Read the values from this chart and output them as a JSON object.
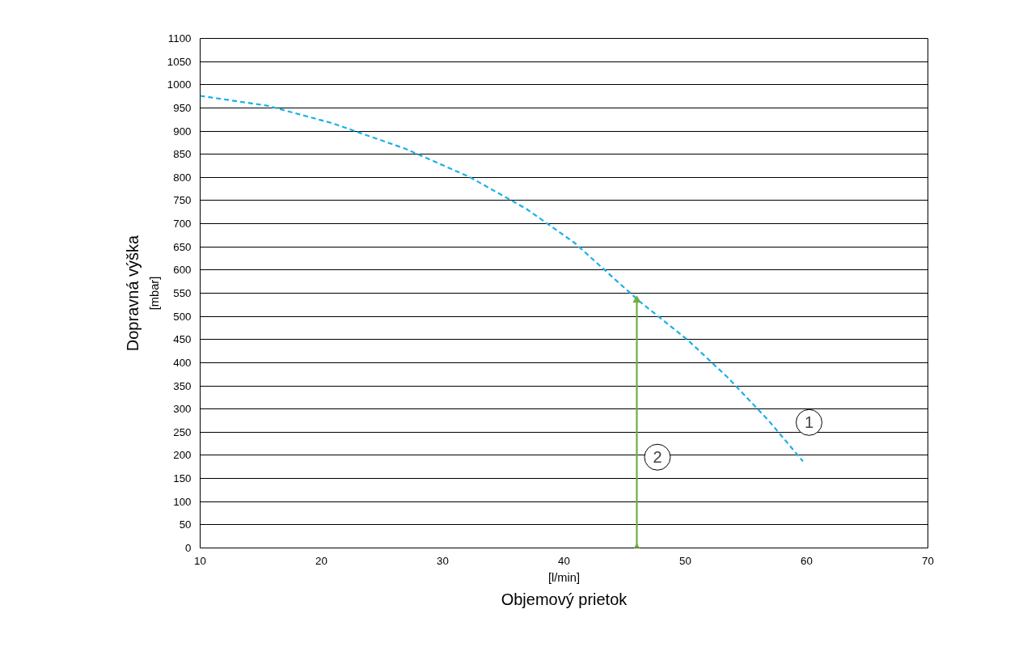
{
  "chart_data": {
    "type": "line",
    "xlabel": "[l/min]\nObjemový prietok",
    "ylabel": "[mbar]\nDopravná výška",
    "xlim": [
      10,
      70
    ],
    "ylim": [
      0,
      1100
    ],
    "xticks": [
      10,
      20,
      30,
      40,
      50,
      60,
      70
    ],
    "yticks": [
      0,
      50,
      100,
      150,
      200,
      250,
      300,
      350,
      400,
      450,
      500,
      550,
      600,
      650,
      700,
      750,
      800,
      850,
      900,
      950,
      1000,
      1050,
      1100
    ],
    "grid": "y",
    "series": [
      {
        "color": "#1ab0e8",
        "line_style": "dashed",
        "marker": "none",
        "x": [
          10,
          15.5,
          20.9,
          26.9,
          32.2,
          36.9,
          40.9,
          44.2,
          46.2,
          50.2,
          53.5,
          56.9,
          59.7
        ],
        "values": [
          976,
          955,
          917,
          862,
          801,
          732,
          658,
          580,
          533,
          449,
          368,
          274,
          187
        ]
      },
      {
        "color": "#70ad47",
        "line_style": "solid",
        "marker": "triangle",
        "x": [
          46,
          46
        ],
        "values": [
          0,
          535
        ]
      }
    ],
    "annotations": [
      {
        "text": "1",
        "x": 60.2,
        "y": 271
      },
      {
        "text": "2",
        "x": 47.7,
        "y": 196
      }
    ]
  }
}
